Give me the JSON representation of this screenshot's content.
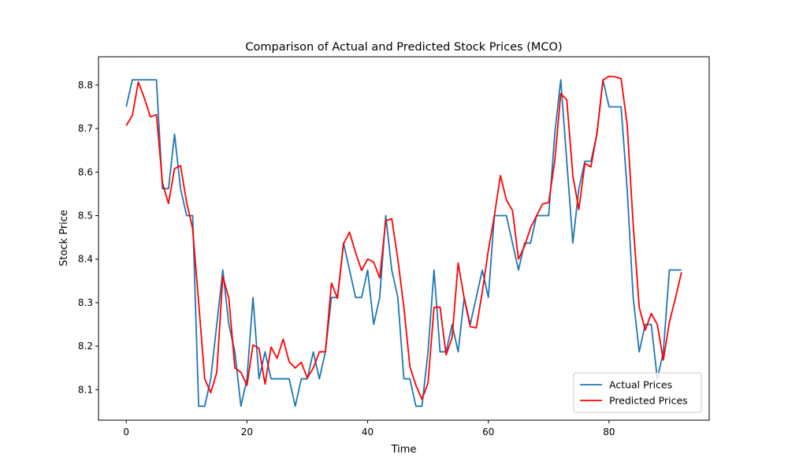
{
  "chart_data": {
    "type": "line",
    "title": "Comparison of Actual and Predicted Stock Prices (MCO)",
    "xlabel": "Time",
    "ylabel": "Stock Price",
    "xlim": [
      -4.6,
      96.6
    ],
    "ylim": [
      8.03,
      8.865
    ],
    "xticks": [
      0,
      20,
      40,
      60,
      80
    ],
    "yticks": [
      8.1,
      8.2,
      8.3,
      8.4,
      8.5,
      8.6,
      8.7,
      8.8
    ],
    "grid": false,
    "legend_position": "lower right",
    "series": [
      {
        "name": "Actual Prices",
        "color": "#1f77b4",
        "values": [
          8.75,
          8.812,
          8.812,
          8.812,
          8.812,
          8.812,
          8.562,
          8.562,
          8.687,
          8.562,
          8.5,
          8.5,
          8.062,
          8.062,
          8.125,
          8.25,
          8.375,
          8.25,
          8.187,
          8.062,
          8.125,
          8.312,
          8.125,
          8.187,
          8.125,
          8.125,
          8.125,
          8.125,
          8.062,
          8.125,
          8.125,
          8.187,
          8.125,
          8.187,
          8.312,
          8.312,
          8.437,
          8.375,
          8.312,
          8.312,
          8.375,
          8.25,
          8.312,
          8.5,
          8.375,
          8.312,
          8.125,
          8.125,
          8.062,
          8.062,
          8.187,
          8.375,
          8.187,
          8.187,
          8.25,
          8.187,
          8.312,
          8.25,
          8.312,
          8.375,
          8.312,
          8.5,
          8.5,
          8.5,
          8.437,
          8.375,
          8.437,
          8.437,
          8.5,
          8.5,
          8.5,
          8.687,
          8.812,
          8.625,
          8.437,
          8.562,
          8.625,
          8.625,
          8.687,
          8.812,
          8.75,
          8.75,
          8.75,
          8.562,
          8.312,
          8.187,
          8.25,
          8.25,
          8.125,
          8.187,
          8.375,
          8.375,
          8.375
        ]
      },
      {
        "name": "Predicted Prices",
        "color": "#ff0000",
        "values": [
          8.707,
          8.73,
          8.807,
          8.77,
          8.727,
          8.732,
          8.575,
          8.528,
          8.608,
          8.615,
          8.53,
          8.47,
          8.3,
          8.125,
          8.093,
          8.14,
          8.36,
          8.31,
          8.15,
          8.14,
          8.11,
          8.203,
          8.195,
          8.113,
          8.198,
          8.172,
          8.216,
          8.164,
          8.15,
          8.163,
          8.127,
          8.15,
          8.187,
          8.187,
          8.345,
          8.31,
          8.435,
          8.462,
          8.415,
          8.374,
          8.4,
          8.393,
          8.357,
          8.488,
          8.493,
          8.4,
          8.29,
          8.153,
          8.11,
          8.078,
          8.115,
          8.289,
          8.29,
          8.18,
          8.22,
          8.391,
          8.31,
          8.245,
          8.242,
          8.325,
          8.42,
          8.5,
          8.592,
          8.536,
          8.512,
          8.4,
          8.43,
          8.472,
          8.5,
          8.527,
          8.53,
          8.625,
          8.78,
          8.766,
          8.592,
          8.514,
          8.62,
          8.612,
          8.69,
          8.812,
          8.82,
          8.819,
          8.815,
          8.71,
          8.48,
          8.29,
          8.237,
          8.275,
          8.25,
          8.168,
          8.255,
          8.31,
          8.37
        ]
      }
    ]
  }
}
